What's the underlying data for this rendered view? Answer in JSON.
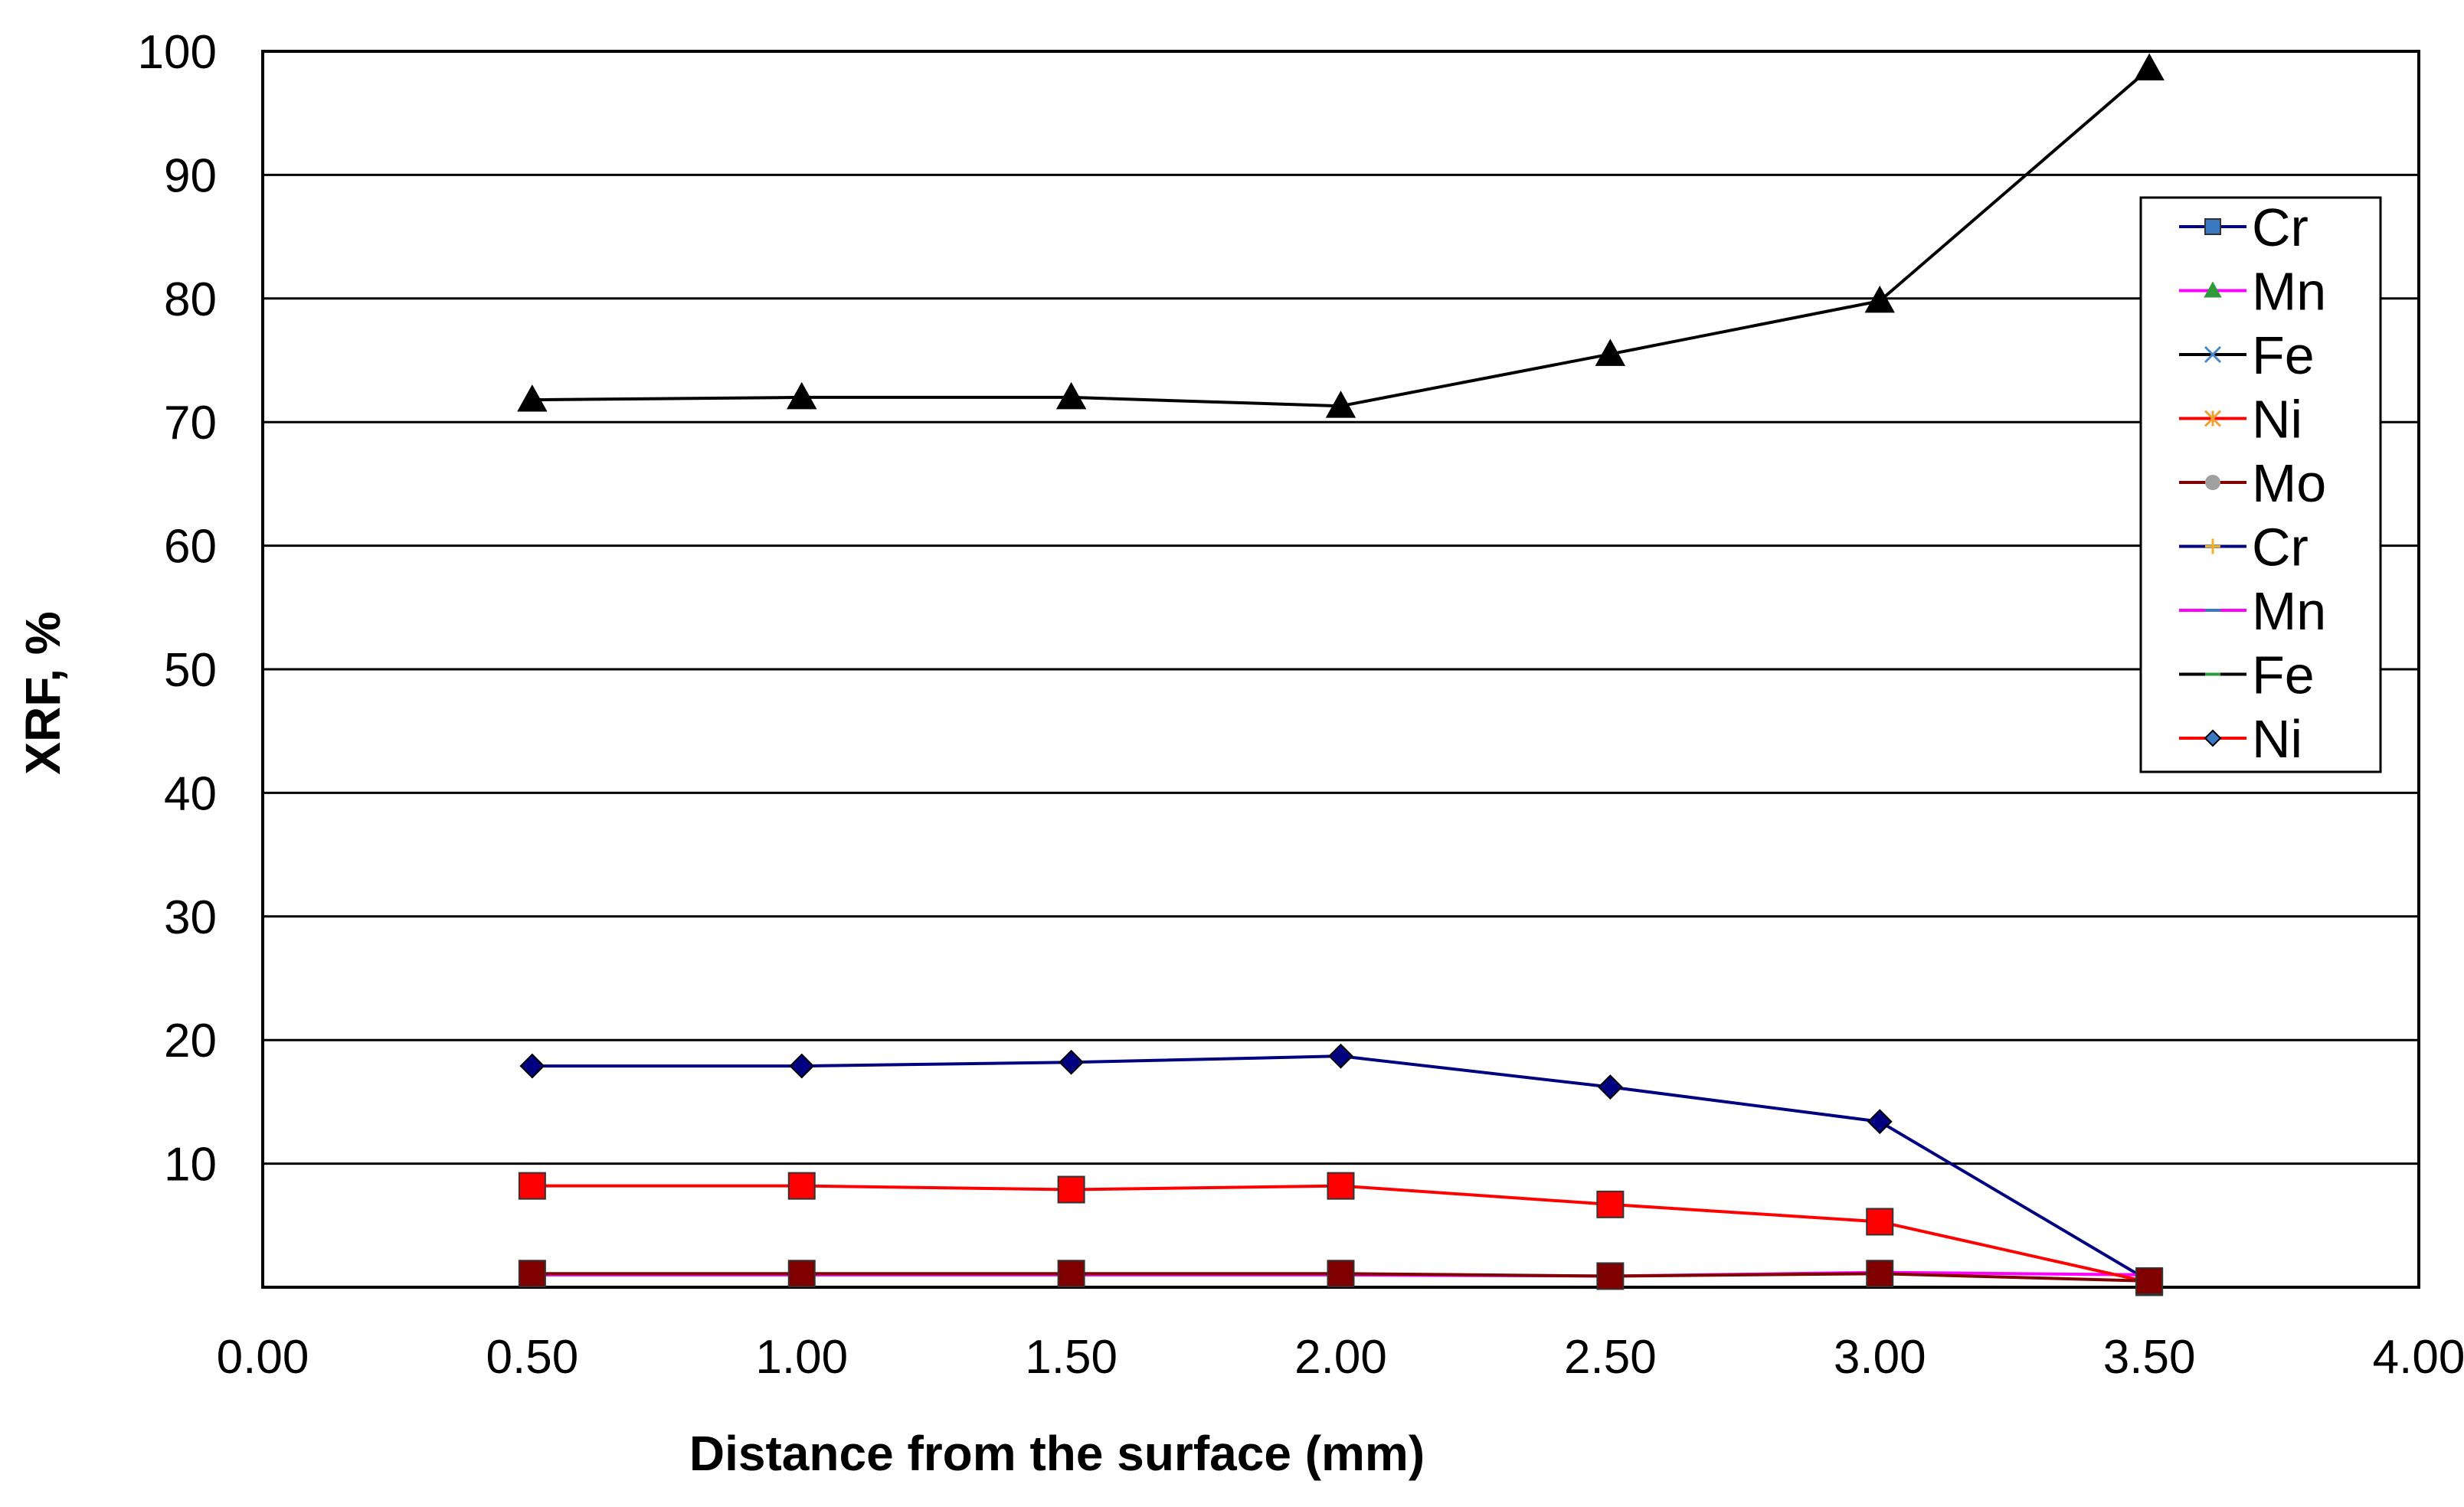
{
  "chart_data": {
    "type": "line",
    "title": "",
    "xlabel": "Distance from the surface (mm)",
    "ylabel": "XRF, %",
    "xlim": [
      0.0,
      4.0
    ],
    "ylim": [
      0,
      100
    ],
    "x_ticks": [
      "0.00",
      "0.50",
      "1.00",
      "1.50",
      "2.00",
      "2.50",
      "3.00",
      "3.50",
      "4.00"
    ],
    "y_ticks": [
      "",
      "10",
      "20",
      "30",
      "40",
      "50",
      "60",
      "70",
      "80",
      "90",
      "100"
    ],
    "grid": "horizontal",
    "legend_position": "top-right",
    "x": [
      0.5,
      1.0,
      1.5,
      2.0,
      2.5,
      3.0,
      3.5
    ],
    "series": [
      {
        "name": "Cr",
        "color": "#000080",
        "marker": "diamond",
        "values": [
          17.9,
          17.9,
          18.2,
          18.7,
          16.2,
          13.4,
          0.5
        ]
      },
      {
        "name": "Mn",
        "color": "#ff00ff",
        "marker": "none",
        "values": [
          1.0,
          1.0,
          1.0,
          1.0,
          0.9,
          1.2,
          1.0
        ]
      },
      {
        "name": "Fe",
        "color": "#000000",
        "marker": "triangle",
        "values": [
          71.8,
          72.0,
          72.0,
          71.3,
          75.5,
          79.8,
          98.6
        ]
      },
      {
        "name": "Ni",
        "color": "#ff0000",
        "marker": "square",
        "values": [
          8.2,
          8.2,
          7.9,
          8.2,
          6.7,
          5.3,
          0.4
        ]
      },
      {
        "name": "Mo",
        "color": "#800000",
        "marker": "square",
        "values": [
          1.1,
          1.1,
          1.1,
          1.1,
          0.9,
          1.1,
          0.5
        ]
      }
    ],
    "legend": [
      {
        "label": "Cr",
        "line_color": "#000080",
        "marker_color": "#3a78c2",
        "marker": "square"
      },
      {
        "label": "Mn",
        "line_color": "#ff00ff",
        "marker_color": "#2e9b3a",
        "marker": "triangle"
      },
      {
        "label": "Fe",
        "line_color": "#000000",
        "marker_color": "#4b86c8",
        "marker": "x"
      },
      {
        "label": "Ni",
        "line_color": "#ff0000",
        "marker_color": "#f0a030",
        "marker": "asterisk"
      },
      {
        "label": "Mo",
        "line_color": "#800000",
        "marker_color": "#a0a0a0",
        "marker": "circle"
      },
      {
        "label": "Cr",
        "line_color": "#000080",
        "marker_color": "#f0b020",
        "marker": "plus"
      },
      {
        "label": "Mn",
        "line_color": "#ff00ff",
        "marker_color": "#3a78c2",
        "marker": "dash"
      },
      {
        "label": "Fe",
        "line_color": "#000000",
        "marker_color": "#2e9b3a",
        "marker": "dash"
      },
      {
        "label": "Ni",
        "line_color": "#ff0000",
        "marker_color": "#3a78c2",
        "marker": "diamond"
      }
    ]
  }
}
